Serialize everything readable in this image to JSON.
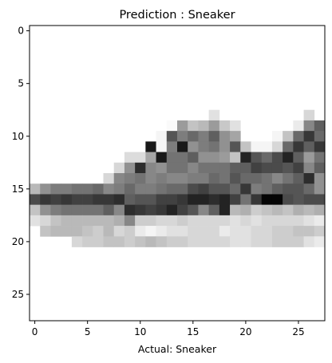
{
  "figure": {
    "title": "Prediction : Sneaker",
    "xlabel": "Actual: Sneaker"
  },
  "chart_data": {
    "type": "heatmap",
    "title": "Prediction : Sneaker",
    "xlabel": "Actual: Sneaker",
    "ylabel": "",
    "colormap": "binary",
    "xlim": [
      -0.5,
      27.5
    ],
    "ylim": [
      27.5,
      -0.5
    ],
    "x_ticks": [
      0,
      5,
      10,
      15,
      20,
      25
    ],
    "y_ticks": [
      0,
      5,
      10,
      15,
      20,
      25
    ],
    "x_tick_labels": [
      "0",
      "5",
      "10",
      "15",
      "20",
      "25"
    ],
    "y_tick_labels": [
      "0",
      "5",
      "10",
      "15",
      "20",
      "25"
    ],
    "grid": false,
    "rows": 28,
    "cols": 28,
    "matrix": [
      [
        0,
        0,
        0,
        0,
        0,
        0,
        0,
        0,
        0,
        0,
        0,
        0,
        0,
        0,
        0,
        0,
        0,
        0,
        0,
        0,
        0,
        0,
        0,
        0,
        0,
        0,
        0,
        0
      ],
      [
        0,
        0,
        0,
        0,
        0,
        0,
        0,
        0,
        0,
        0,
        0,
        0,
        0,
        0,
        0,
        0,
        0,
        0,
        0,
        0,
        0,
        0,
        0,
        0,
        0,
        0,
        0,
        0
      ],
      [
        0,
        0,
        0,
        0,
        0,
        0,
        0,
        0,
        0,
        0,
        0,
        0,
        0,
        0,
        0,
        0,
        0,
        0,
        0,
        0,
        0,
        0,
        0,
        0,
        0,
        0,
        0,
        0
      ],
      [
        0,
        0,
        0,
        0,
        0,
        0,
        0,
        0,
        0,
        0,
        0,
        0,
        0,
        0,
        0,
        0,
        0,
        0,
        0,
        0,
        0,
        0,
        0,
        0,
        0,
        0,
        0,
        0
      ],
      [
        0,
        0,
        0,
        0,
        0,
        0,
        0,
        0,
        0,
        0,
        0,
        0,
        0,
        0,
        0,
        0,
        0,
        0,
        0,
        0,
        0,
        0,
        0,
        0,
        0,
        0,
        0,
        0
      ],
      [
        0,
        0,
        0,
        0,
        0,
        0,
        0,
        0,
        0,
        0,
        0,
        0,
        0,
        0,
        0,
        0,
        0,
        0,
        0,
        0,
        0,
        0,
        0,
        0,
        0,
        0,
        0,
        0
      ],
      [
        0,
        0,
        0,
        0,
        0,
        0,
        0,
        0,
        0,
        0,
        0,
        0,
        0,
        0,
        0,
        0,
        0,
        0,
        0,
        0,
        0,
        0,
        0,
        0,
        0,
        0,
        0,
        0
      ],
      [
        0,
        0,
        0,
        0,
        0,
        0,
        0,
        0,
        0,
        0,
        0,
        0,
        0,
        0,
        0,
        0,
        0,
        0,
        0,
        0,
        0,
        0,
        0,
        0,
        0,
        0,
        0,
        0
      ],
      [
        0,
        0,
        0,
        0,
        0,
        0,
        0,
        0,
        0,
        0,
        0,
        0,
        0,
        0,
        0,
        0,
        0,
        30,
        0,
        0,
        0,
        0,
        0,
        0,
        0,
        0,
        40,
        0
      ],
      [
        0,
        0,
        0,
        0,
        0,
        0,
        0,
        0,
        0,
        0,
        0,
        0,
        0,
        5,
        100,
        60,
        70,
        100,
        55,
        30,
        0,
        0,
        0,
        0,
        0,
        20,
        120,
        160
      ],
      [
        0,
        0,
        0,
        0,
        0,
        0,
        0,
        0,
        0,
        0,
        0,
        0,
        10,
        170,
        130,
        150,
        130,
        160,
        110,
        90,
        0,
        0,
        0,
        10,
        60,
        150,
        200,
        150
      ],
      [
        0,
        0,
        0,
        0,
        0,
        0,
        0,
        0,
        0,
        0,
        0,
        230,
        10,
        130,
        230,
        110,
        130,
        140,
        110,
        170,
        60,
        10,
        10,
        40,
        150,
        200,
        160,
        200
      ],
      [
        0,
        0,
        0,
        0,
        0,
        0,
        0,
        0,
        0,
        35,
        35,
        90,
        230,
        140,
        140,
        160,
        110,
        110,
        100,
        60,
        220,
        170,
        150,
        180,
        220,
        160,
        100,
        140
      ],
      [
        0,
        0,
        0,
        0,
        0,
        0,
        0,
        0,
        40,
        110,
        210,
        120,
        110,
        140,
        140,
        120,
        140,
        140,
        140,
        160,
        160,
        190,
        180,
        180,
        170,
        190,
        120,
        160
      ],
      [
        0,
        0,
        0,
        0,
        0,
        0,
        0,
        40,
        120,
        130,
        140,
        120,
        130,
        120,
        120,
        130,
        130,
        150,
        140,
        170,
        150,
        150,
        140,
        120,
        140,
        160,
        210,
        110
      ],
      [
        70,
        110,
        130,
        130,
        140,
        140,
        150,
        120,
        130,
        150,
        130,
        130,
        140,
        150,
        150,
        180,
        190,
        170,
        170,
        150,
        200,
        130,
        140,
        160,
        170,
        170,
        150,
        110
      ],
      [
        180,
        200,
        190,
        200,
        190,
        190,
        200,
        200,
        210,
        160,
        170,
        170,
        190,
        190,
        200,
        220,
        220,
        210,
        220,
        190,
        140,
        200,
        250,
        250,
        180,
        170,
        180,
        180
      ],
      [
        60,
        110,
        130,
        140,
        140,
        140,
        140,
        160,
        120,
        210,
        200,
        190,
        200,
        220,
        190,
        170,
        120,
        160,
        220,
        70,
        80,
        50,
        60,
        70,
        60,
        80,
        70,
        80
      ],
      [
        30,
        40,
        60,
        70,
        70,
        70,
        70,
        70,
        80,
        120,
        50,
        50,
        40,
        40,
        50,
        40,
        40,
        40,
        40,
        30,
        40,
        30,
        40,
        40,
        40,
        40,
        30,
        20
      ],
      [
        0,
        60,
        70,
        70,
        70,
        60,
        50,
        70,
        40,
        50,
        20,
        10,
        20,
        30,
        30,
        40,
        40,
        40,
        20,
        30,
        30,
        40,
        40,
        50,
        50,
        60,
        60,
        50
      ],
      [
        0,
        0,
        0,
        0,
        40,
        50,
        50,
        60,
        60,
        50,
        60,
        70,
        60,
        50,
        50,
        40,
        40,
        40,
        40,
        30,
        30,
        40,
        40,
        50,
        50,
        50,
        30,
        20
      ],
      [
        0,
        0,
        0,
        0,
        0,
        0,
        0,
        0,
        0,
        0,
        0,
        0,
        0,
        0,
        0,
        0,
        0,
        0,
        0,
        0,
        0,
        0,
        0,
        0,
        0,
        0,
        0,
        0
      ],
      [
        0,
        0,
        0,
        0,
        0,
        0,
        0,
        0,
        0,
        0,
        0,
        0,
        0,
        0,
        0,
        0,
        0,
        0,
        0,
        0,
        0,
        0,
        0,
        0,
        0,
        0,
        0,
        0
      ],
      [
        0,
        0,
        0,
        0,
        0,
        0,
        0,
        0,
        0,
        0,
        0,
        0,
        0,
        0,
        0,
        0,
        0,
        0,
        0,
        0,
        0,
        0,
        0,
        0,
        0,
        0,
        0,
        0
      ],
      [
        0,
        0,
        0,
        0,
        0,
        0,
        0,
        0,
        0,
        0,
        0,
        0,
        0,
        0,
        0,
        0,
        0,
        0,
        0,
        0,
        0,
        0,
        0,
        0,
        0,
        0,
        0,
        0
      ],
      [
        0,
        0,
        0,
        0,
        0,
        0,
        0,
        0,
        0,
        0,
        0,
        0,
        0,
        0,
        0,
        0,
        0,
        0,
        0,
        0,
        0,
        0,
        0,
        0,
        0,
        0,
        0,
        0
      ],
      [
        0,
        0,
        0,
        0,
        0,
        0,
        0,
        0,
        0,
        0,
        0,
        0,
        0,
        0,
        0,
        0,
        0,
        0,
        0,
        0,
        0,
        0,
        0,
        0,
        0,
        0,
        0,
        0
      ],
      [
        0,
        0,
        0,
        0,
        0,
        0,
        0,
        0,
        0,
        0,
        0,
        0,
        0,
        0,
        0,
        0,
        0,
        0,
        0,
        0,
        0,
        0,
        0,
        0,
        0,
        0,
        0,
        0
      ]
    ]
  }
}
